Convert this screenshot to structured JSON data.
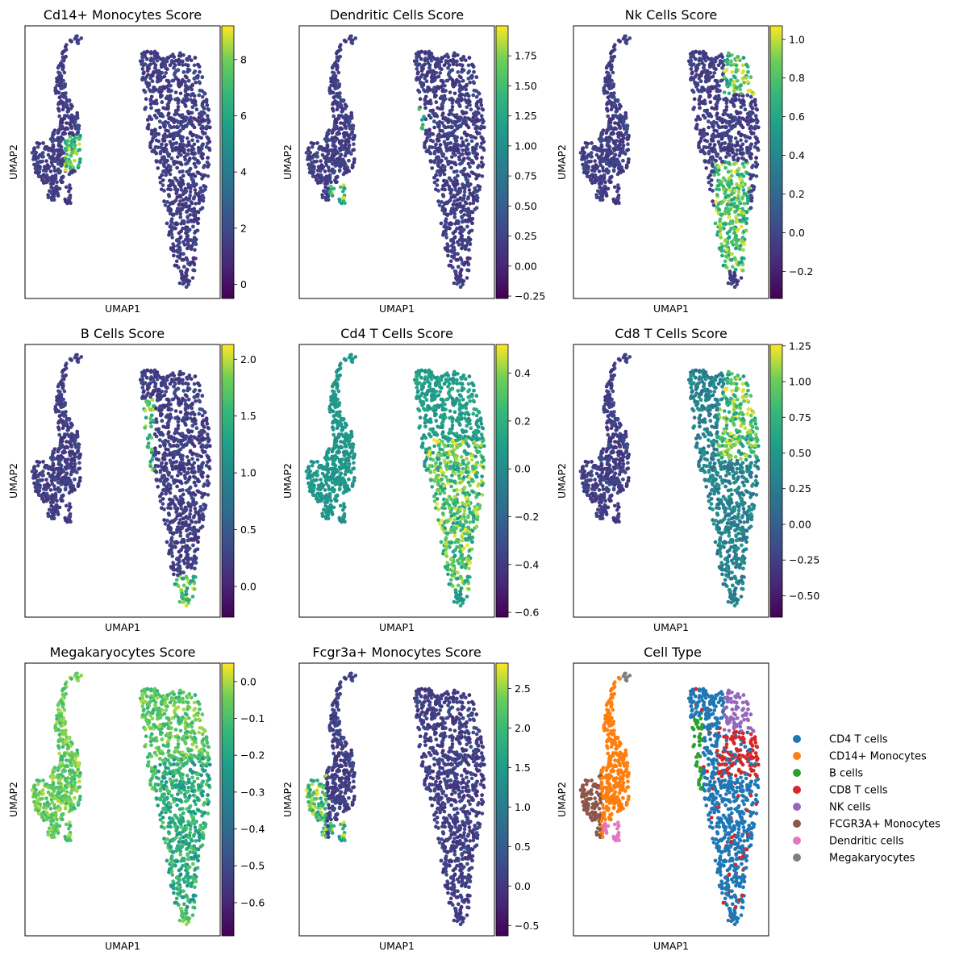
{
  "chart_data": [
    {
      "type": "scatter",
      "title": "Cd14+ Monocytes Score",
      "xlabel": "UMAP1",
      "ylabel": "UMAP2",
      "colormap": "viridis",
      "color_range": [
        -0.5,
        9.2
      ],
      "colorbar_ticks": [
        0,
        2,
        4,
        6,
        8
      ],
      "colorbar_tick_labels": [
        "0",
        "2",
        "4",
        "6",
        "8"
      ],
      "high_regions": [
        "cd14"
      ]
    },
    {
      "type": "scatter",
      "title": "Dendritic Cells Score",
      "xlabel": "UMAP1",
      "ylabel": "UMAP2",
      "colormap": "viridis",
      "color_range": [
        -0.27,
        2.0
      ],
      "colorbar_ticks": [
        -0.25,
        0.0,
        0.25,
        0.5,
        0.75,
        1.0,
        1.25,
        1.5,
        1.75
      ],
      "colorbar_tick_labels": [
        "−0.25",
        "0.00",
        "0.25",
        "0.50",
        "0.75",
        "1.00",
        "1.25",
        "1.50",
        "1.75"
      ],
      "high_regions": [
        "dc",
        "bstrip_mid"
      ]
    },
    {
      "type": "scatter",
      "title": "Nk Cells Score",
      "xlabel": "UMAP1",
      "ylabel": "UMAP2",
      "colormap": "viridis",
      "color_range": [
        -0.34,
        1.07
      ],
      "colorbar_ticks": [
        -0.2,
        0.0,
        0.2,
        0.4,
        0.6,
        0.8,
        1.0
      ],
      "colorbar_tick_labels": [
        "−0.2",
        "0.0",
        "0.2",
        "0.4",
        "0.6",
        "0.8",
        "1.0"
      ],
      "high_regions": [
        "nk",
        "cd8_mid"
      ]
    },
    {
      "type": "scatter",
      "title": "B Cells Score",
      "xlabel": "UMAP1",
      "ylabel": "UMAP2",
      "colormap": "viridis",
      "color_range": [
        -0.27,
        2.13
      ],
      "colorbar_ticks": [
        0.0,
        0.5,
        1.0,
        1.5,
        2.0
      ],
      "colorbar_tick_labels": [
        "0.0",
        "0.5",
        "1.0",
        "1.5",
        "2.0"
      ],
      "high_regions": [
        "bcells",
        "mega"
      ]
    },
    {
      "type": "scatter",
      "title": "Cd4 T Cells Score",
      "xlabel": "UMAP1",
      "ylabel": "UMAP2",
      "colormap": "viridis",
      "color_range": [
        -0.62,
        0.52
      ],
      "colorbar_ticks": [
        -0.6,
        -0.4,
        -0.2,
        0.0,
        0.2,
        0.4
      ],
      "colorbar_tick_labels": [
        "−0.6",
        "−0.4",
        "−0.2",
        "0.0",
        "0.2",
        "0.4"
      ],
      "high_regions": [
        "cd4"
      ]
    },
    {
      "type": "scatter",
      "title": "Cd8 T Cells Score",
      "xlabel": "UMAP1",
      "ylabel": "UMAP2",
      "colormap": "viridis",
      "color_range": [
        -0.65,
        1.26
      ],
      "colorbar_ticks": [
        -0.5,
        -0.25,
        0.0,
        0.25,
        0.5,
        0.75,
        1.0,
        1.25
      ],
      "colorbar_tick_labels": [
        "−0.50",
        "−0.25",
        "0.00",
        "0.25",
        "0.50",
        "0.75",
        "1.00",
        "1.25"
      ],
      "high_regions": [
        "nk",
        "cd8"
      ]
    },
    {
      "type": "scatter",
      "title": "Megakaryocytes Score",
      "xlabel": "UMAP1",
      "ylabel": "UMAP2",
      "colormap": "viridis",
      "color_range": [
        -0.69,
        0.05
      ],
      "colorbar_ticks": [
        -0.6,
        -0.5,
        -0.4,
        -0.3,
        -0.2,
        -0.1,
        0.0
      ],
      "colorbar_tick_labels": [
        "−0.6",
        "−0.5",
        "−0.4",
        "−0.3",
        "−0.2",
        "−0.1",
        "0.0"
      ],
      "high_regions": [
        "mega_global"
      ]
    },
    {
      "type": "scatter",
      "title": "Fcgr3a+ Monocytes Score",
      "xlabel": "UMAP1",
      "ylabel": "UMAP2",
      "colormap": "viridis",
      "color_range": [
        -0.63,
        2.82
      ],
      "colorbar_ticks": [
        -0.5,
        0.0,
        0.5,
        1.0,
        1.5,
        2.0,
        2.5
      ],
      "colorbar_tick_labels": [
        "−0.5",
        "0.0",
        "0.5",
        "1.0",
        "1.5",
        "2.0",
        "2.5"
      ],
      "high_regions": [
        "fcgr3a",
        "dc"
      ]
    },
    {
      "type": "scatter",
      "title": "Cell Type",
      "xlabel": "UMAP1",
      "ylabel": "UMAP2",
      "categorical": true,
      "legend_placement": "right",
      "categories": [
        {
          "name": "CD4 T cells",
          "color": "#1f77b4"
        },
        {
          "name": "CD14+ Monocytes",
          "color": "#ff7f0e"
        },
        {
          "name": "B cells",
          "color": "#2ca02c"
        },
        {
          "name": "CD8 T cells",
          "color": "#d62728"
        },
        {
          "name": "NK cells",
          "color": "#9467bd"
        },
        {
          "name": "FCGR3A+ Monocytes",
          "color": "#8c564b"
        },
        {
          "name": "Dendritic cells",
          "color": "#e377c2"
        },
        {
          "name": "Megakaryocytes",
          "color": "#7f7f7f"
        }
      ]
    }
  ]
}
